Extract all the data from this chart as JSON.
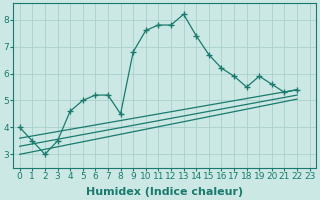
{
  "bg_color": "#cce8e5",
  "grid_color": "#aad0cc",
  "line_color": "#1a7a6e",
  "xlabel": "Humidex (Indice chaleur)",
  "xlabel_fontsize": 8,
  "tick_fontsize": 6.5,
  "xlim": [
    -0.5,
    23.5
  ],
  "ylim": [
    2.5,
    8.6
  ],
  "yticks": [
    3,
    4,
    5,
    6,
    7,
    8
  ],
  "xticks": [
    0,
    1,
    2,
    3,
    4,
    5,
    6,
    7,
    8,
    9,
    10,
    11,
    12,
    13,
    14,
    15,
    16,
    17,
    18,
    19,
    20,
    21,
    22,
    23
  ],
  "line1_x": [
    0,
    1,
    2,
    3,
    4,
    5,
    6,
    7,
    8,
    9,
    10,
    11,
    12,
    13,
    14,
    15,
    16,
    17,
    18,
    19,
    20,
    21,
    22
  ],
  "line1_y": [
    4.0,
    3.5,
    3.0,
    3.5,
    4.6,
    5.0,
    5.2,
    5.2,
    4.5,
    6.8,
    7.6,
    7.8,
    7.8,
    8.2,
    7.4,
    6.7,
    6.2,
    5.9,
    5.5,
    5.9,
    5.6,
    5.3,
    5.4
  ],
  "line2_x": [
    0,
    22
  ],
  "line2_y": [
    3.6,
    5.4
  ],
  "line3_x": [
    0,
    22
  ],
  "line3_y": [
    3.3,
    5.2
  ],
  "line4_x": [
    0,
    22
  ],
  "line4_y": [
    3.0,
    5.05
  ],
  "marker": "+"
}
